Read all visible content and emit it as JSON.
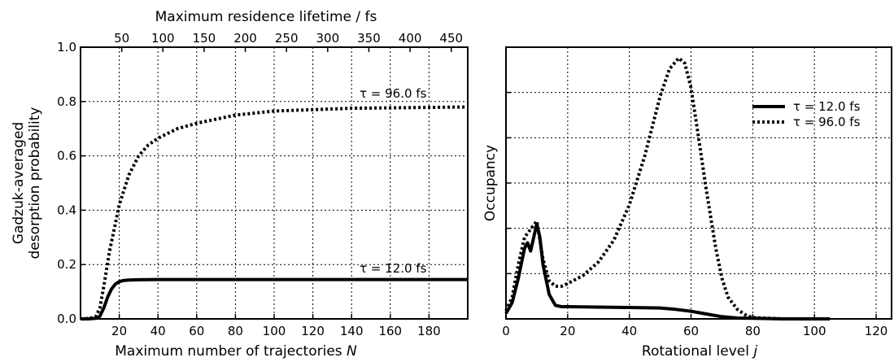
{
  "chart_data": [
    {
      "type": "line",
      "xlabel": "Maximum number of trajectories N",
      "xlabel_main": "Maximum number of trajectories ",
      "xlabel_var": "N",
      "ylabel_line1": "Gadzuk-averaged",
      "ylabel_line2": "desorption probability",
      "top_xlabel": "Maximum residence lifetime / fs",
      "xlim": [
        0,
        200
      ],
      "ylim": [
        0,
        1.0
      ],
      "xticks": [
        20,
        40,
        60,
        80,
        100,
        120,
        140,
        160,
        180
      ],
      "yticks": [
        "0.0",
        "0.2",
        "0.4",
        "0.6",
        "0.8",
        "1.0"
      ],
      "top_xticks": [
        50,
        100,
        150,
        200,
        250,
        300,
        350,
        400,
        450
      ],
      "grid": true,
      "series": [
        {
          "name": "τ = 12.0 fs",
          "style": "solid",
          "x": [
            0,
            4,
            8,
            10,
            12,
            14,
            16,
            18,
            20,
            22,
            25,
            30,
            40,
            60,
            100,
            200
          ],
          "y": [
            0,
            0,
            0.002,
            0.01,
            0.04,
            0.08,
            0.11,
            0.128,
            0.137,
            0.141,
            0.143,
            0.144,
            0.145,
            0.145,
            0.145,
            0.145
          ]
        },
        {
          "name": "τ = 96.0 fs",
          "style": "dotted",
          "x": [
            0,
            5,
            8,
            10,
            12,
            15,
            18,
            20,
            25,
            30,
            35,
            40,
            50,
            60,
            80,
            100,
            140,
            200
          ],
          "y": [
            0,
            0.002,
            0.01,
            0.04,
            0.12,
            0.25,
            0.35,
            0.42,
            0.53,
            0.6,
            0.64,
            0.665,
            0.7,
            0.72,
            0.75,
            0.765,
            0.775,
            0.78
          ]
        }
      ],
      "annotations": [
        "τ = 96.0 fs",
        "τ = 12.0 fs"
      ]
    },
    {
      "type": "line",
      "xlabel": "Rotational level j",
      "xlabel_main": "Rotational level ",
      "xlabel_var": "j",
      "ylabel": "Occupancy",
      "xlim": [
        0,
        125
      ],
      "ylim": [
        0,
        1.0
      ],
      "xticks": [
        0,
        20,
        40,
        60,
        80,
        100,
        120
      ],
      "ytick_labels_shown": false,
      "grid": true,
      "legend_position": "upper-right",
      "series": [
        {
          "name": "τ = 12.0 fs",
          "style": "solid",
          "x": [
            0,
            2,
            4,
            6,
            7,
            8,
            9,
            10,
            11,
            12,
            14,
            16,
            18,
            20,
            40,
            50,
            55,
            60,
            65,
            70,
            75,
            80,
            90,
            100,
            105
          ],
          "y": [
            0.02,
            0.06,
            0.15,
            0.26,
            0.28,
            0.25,
            0.3,
            0.35,
            0.3,
            0.2,
            0.09,
            0.05,
            0.045,
            0.045,
            0.042,
            0.04,
            0.035,
            0.028,
            0.018,
            0.008,
            0.003,
            0.002,
            0.0,
            0.0,
            0.0
          ]
        },
        {
          "name": "τ = 96.0 fs",
          "style": "dotted",
          "x": [
            0,
            2,
            4,
            6,
            8,
            10,
            12,
            14,
            16,
            18,
            20,
            25,
            30,
            35,
            40,
            45,
            50,
            53,
            56,
            58,
            60,
            62,
            65,
            68,
            70,
            72,
            75,
            78,
            80,
            85,
            90
          ],
          "y": [
            0.03,
            0.08,
            0.2,
            0.3,
            0.33,
            0.36,
            0.22,
            0.14,
            0.12,
            0.12,
            0.13,
            0.16,
            0.21,
            0.29,
            0.42,
            0.6,
            0.82,
            0.92,
            0.96,
            0.94,
            0.85,
            0.7,
            0.47,
            0.26,
            0.15,
            0.08,
            0.035,
            0.012,
            0.005,
            0.002,
            0.0
          ]
        }
      ]
    }
  ]
}
